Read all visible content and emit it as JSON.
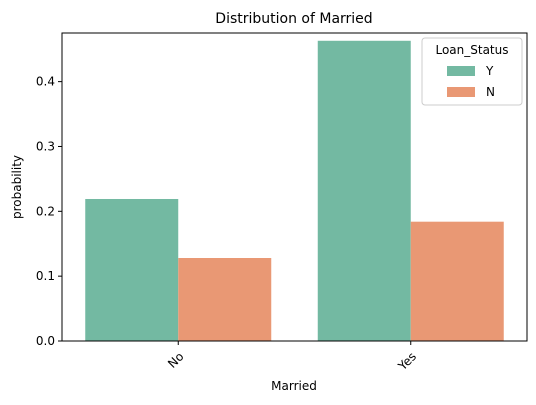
{
  "chart_data": {
    "type": "bar",
    "title": "Distribution of Married",
    "xlabel": "Married",
    "ylabel": "probability",
    "categories": [
      "No",
      "Yes"
    ],
    "series": [
      {
        "name": "Y",
        "color": "#73b9a2",
        "values": [
          0.219,
          0.463
        ]
      },
      {
        "name": "N",
        "color": "#e99874",
        "values": [
          0.128,
          0.184
        ]
      }
    ],
    "ylim": [
      0,
      0.475
    ],
    "yticks": [
      0.0,
      0.1,
      0.2,
      0.3,
      0.4
    ],
    "ytick_labels": [
      "0.0",
      "0.1",
      "0.2",
      "0.3",
      "0.4"
    ],
    "grid": false,
    "legend": {
      "title": "Loan_Status",
      "placement": "top-right"
    }
  }
}
